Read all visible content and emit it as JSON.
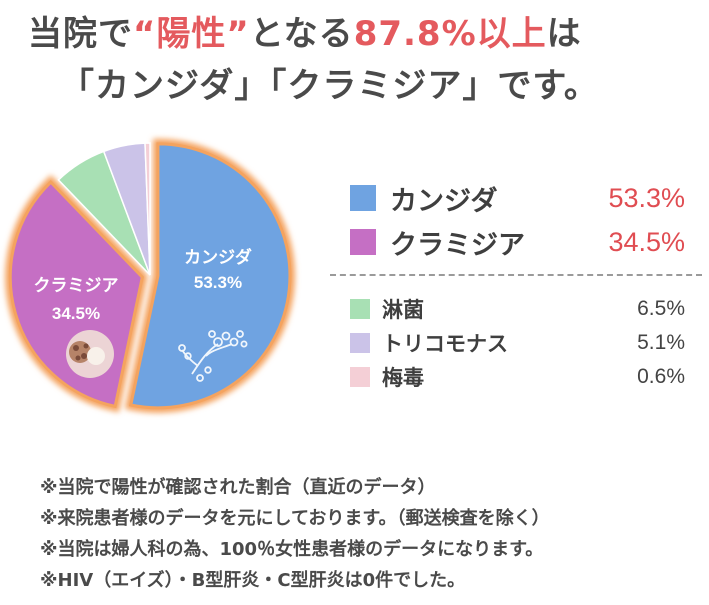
{
  "headline": {
    "line1_part1": "当院で",
    "line1_highlight": "“陽性”",
    "line1_part2": "となる",
    "line1_percent": "87.8%以上",
    "line1_part3": "は",
    "line2": "「カンジダ」「クラミジア」です。"
  },
  "colors": {
    "accent": "#e45a5e",
    "candida": "#6fa3e1",
    "chlamydia": "#c56fc4",
    "gonorrhea": "#a8e0b4",
    "trichomonas": "#cbc3e8",
    "syphilis": "#f4cfd6",
    "highlight_border": "#f4a35f"
  },
  "chart_data": {
    "type": "pie",
    "slices": [
      {
        "name": "カンジダ",
        "value": 53.3,
        "label": "53.3%",
        "color": "#6fa3e1"
      },
      {
        "name": "クラミジア",
        "value": 34.5,
        "label": "34.5%",
        "color": "#c56fc4"
      },
      {
        "name": "淋菌",
        "value": 6.5,
        "label": "6.5%",
        "color": "#a8e0b4"
      },
      {
        "name": "トリコモナス",
        "value": 5.1,
        "label": "5.1%",
        "color": "#cbc3e8"
      },
      {
        "name": "梅毒",
        "value": 0.6,
        "label": "0.6%",
        "color": "#f4cfd6"
      }
    ],
    "start_angle_deg": 0,
    "direction": "clockwise",
    "exploded": [
      "カンジダ",
      "クラミジア"
    ],
    "legend_position": "right"
  },
  "legend": {
    "major": [
      {
        "label": "カンジダ",
        "value": "53.3%",
        "color": "#6fa3e1"
      },
      {
        "label": "クラミジア",
        "value": "34.5%",
        "color": "#c56fc4"
      }
    ],
    "minor": [
      {
        "label": "淋菌",
        "value": "6.5%",
        "color": "#a8e0b4"
      },
      {
        "label": "トリコモナス",
        "value": "5.1%",
        "color": "#cbc3e8"
      },
      {
        "label": "梅毒",
        "value": "0.6%",
        "color": "#f4cfd6"
      }
    ]
  },
  "notes": [
    "※当院で陽性が確認された割合（直近のデータ）",
    "※来院患者様のデータを元にしております。（郵送検査を除く）",
    "※当院は婦人科の為、100％女性患者様のデータになります。",
    "※HIV（エイズ）・B型肝炎・C型肝炎は0件でした。"
  ]
}
